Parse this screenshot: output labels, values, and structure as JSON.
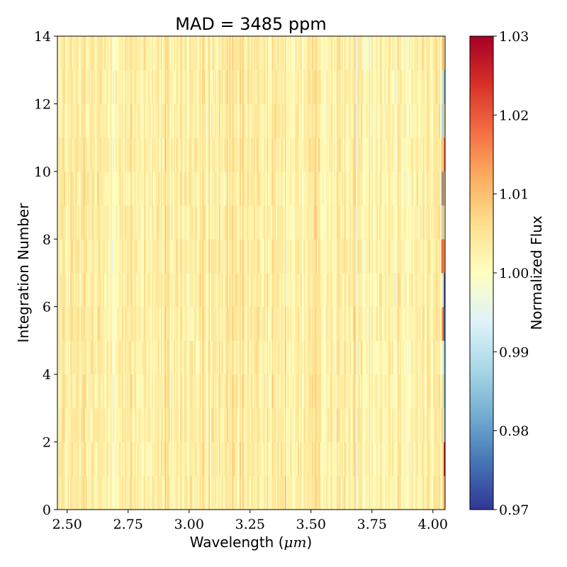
{
  "chart_data": {
    "type": "heatmap",
    "title": "MAD = 3485 ppm",
    "xlabel": "Wavelength (",
    "xlabel_unit": "μm",
    "xlabel_close": ")",
    "ylabel": "Integration Number",
    "colorbar_label": "Normalized Flux",
    "xlim": [
      2.46,
      4.05
    ],
    "ylim": [
      0,
      14
    ],
    "x_ticks": [
      {
        "value": 2.5,
        "label": "2.50"
      },
      {
        "value": 2.75,
        "label": "2.75"
      },
      {
        "value": 3.0,
        "label": "3.00"
      },
      {
        "value": 3.25,
        "label": "3.25"
      },
      {
        "value": 3.5,
        "label": "3.50"
      },
      {
        "value": 3.75,
        "label": "3.75"
      },
      {
        "value": 4.0,
        "label": "4.00"
      }
    ],
    "y_ticks": [
      {
        "value": 0,
        "label": "0"
      },
      {
        "value": 2,
        "label": "2"
      },
      {
        "value": 4,
        "label": "4"
      },
      {
        "value": 6,
        "label": "6"
      },
      {
        "value": 8,
        "label": "8"
      },
      {
        "value": 10,
        "label": "10"
      },
      {
        "value": 12,
        "label": "12"
      },
      {
        "value": 14,
        "label": "14"
      }
    ],
    "colorbar": {
      "min": 0.97,
      "max": 1.03,
      "colormap": "RdYlBu_r",
      "ticks": [
        {
          "value": 0.97,
          "label": "0.97"
        },
        {
          "value": 0.98,
          "label": "0.98"
        },
        {
          "value": 0.99,
          "label": "0.99"
        },
        {
          "value": 1.0,
          "label": "1.00"
        },
        {
          "value": 1.01,
          "label": "1.01"
        },
        {
          "value": 1.02,
          "label": "1.02"
        },
        {
          "value": 1.03,
          "label": "1.03"
        }
      ],
      "colors": [
        "#313695",
        "#4575b4",
        "#74add1",
        "#abd9e9",
        "#e0f3f8",
        "#ffffbf",
        "#fee090",
        "#fdae61",
        "#f46d43",
        "#d73027",
        "#a50026"
      ]
    },
    "integrations": 14,
    "wavelength_bins": 300
  }
}
